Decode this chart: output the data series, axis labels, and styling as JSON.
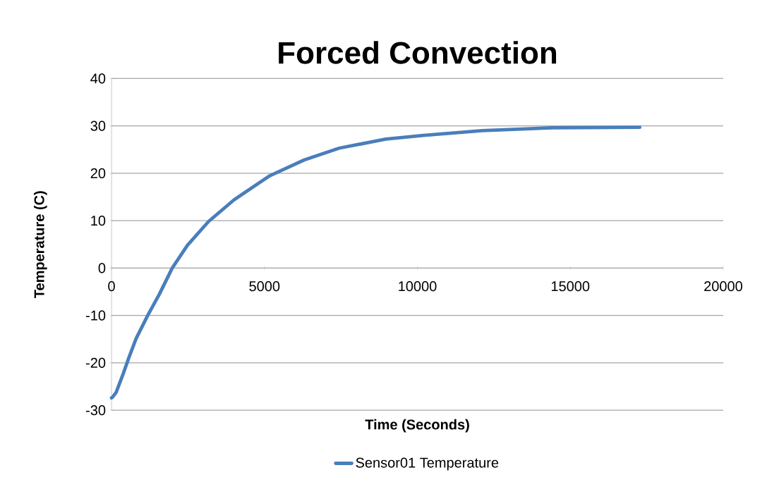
{
  "chart_data": {
    "type": "line",
    "title": "Forced Convection",
    "xlabel": "Time (Seconds)",
    "ylabel": "Temperature (C)",
    "x": [
      0,
      38,
      153,
      382,
      573,
      802,
      1183,
      1565,
      1985,
      2481,
      3168,
      4008,
      5153,
      6298,
      7443,
      8969,
      10196,
      12118,
      14425,
      17271
    ],
    "series": [
      {
        "name": "Sensor01 Temperature",
        "color": "#4a7ebb",
        "values": [
          -27.4,
          -27.2,
          -26.2,
          -22.3,
          -18.8,
          -14.9,
          -10,
          -5.5,
          0,
          4.8,
          9.8,
          14.4,
          19.4,
          22.8,
          25.3,
          27.2,
          28,
          29,
          29.6,
          29.7
        ]
      }
    ],
    "xlim": [
      0,
      20000
    ],
    "ylim": [
      -30,
      40
    ],
    "xticks": [
      0,
      5000,
      10000,
      15000,
      20000
    ],
    "yticks": [
      -30,
      -20,
      -10,
      0,
      10,
      20,
      30,
      40
    ],
    "grid": "y",
    "legend": "bottom"
  }
}
